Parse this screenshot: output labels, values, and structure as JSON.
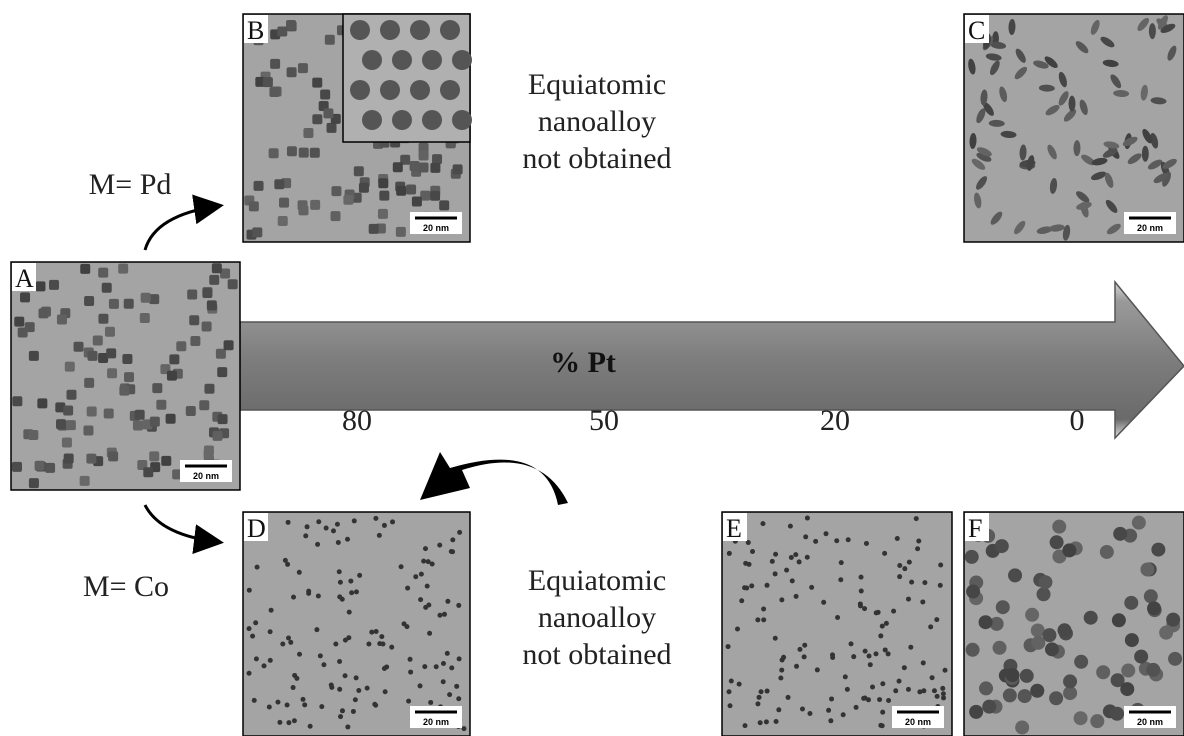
{
  "panels": [
    {
      "letter": "A",
      "scale_bar": "20 nm"
    },
    {
      "letter": "B",
      "scale_bar": "20 nm"
    },
    {
      "letter": "C",
      "scale_bar": "20 nm"
    },
    {
      "letter": "D",
      "scale_bar": "20 nm"
    },
    {
      "letter": "E",
      "scale_bar": "20 nm"
    },
    {
      "letter": "F",
      "scale_bar": "20 nm"
    }
  ],
  "arrow": {
    "label": "% Pt",
    "ticks": [
      80,
      50,
      20,
      0
    ]
  },
  "branches": {
    "top": "M= Pd",
    "bottom": "M= Co"
  },
  "notes": {
    "top": [
      "Equiatomic",
      "nanoalloy",
      "not obtained"
    ],
    "bottom": [
      "Equiatomic",
      "nanoalloy",
      "not obtained"
    ]
  }
}
